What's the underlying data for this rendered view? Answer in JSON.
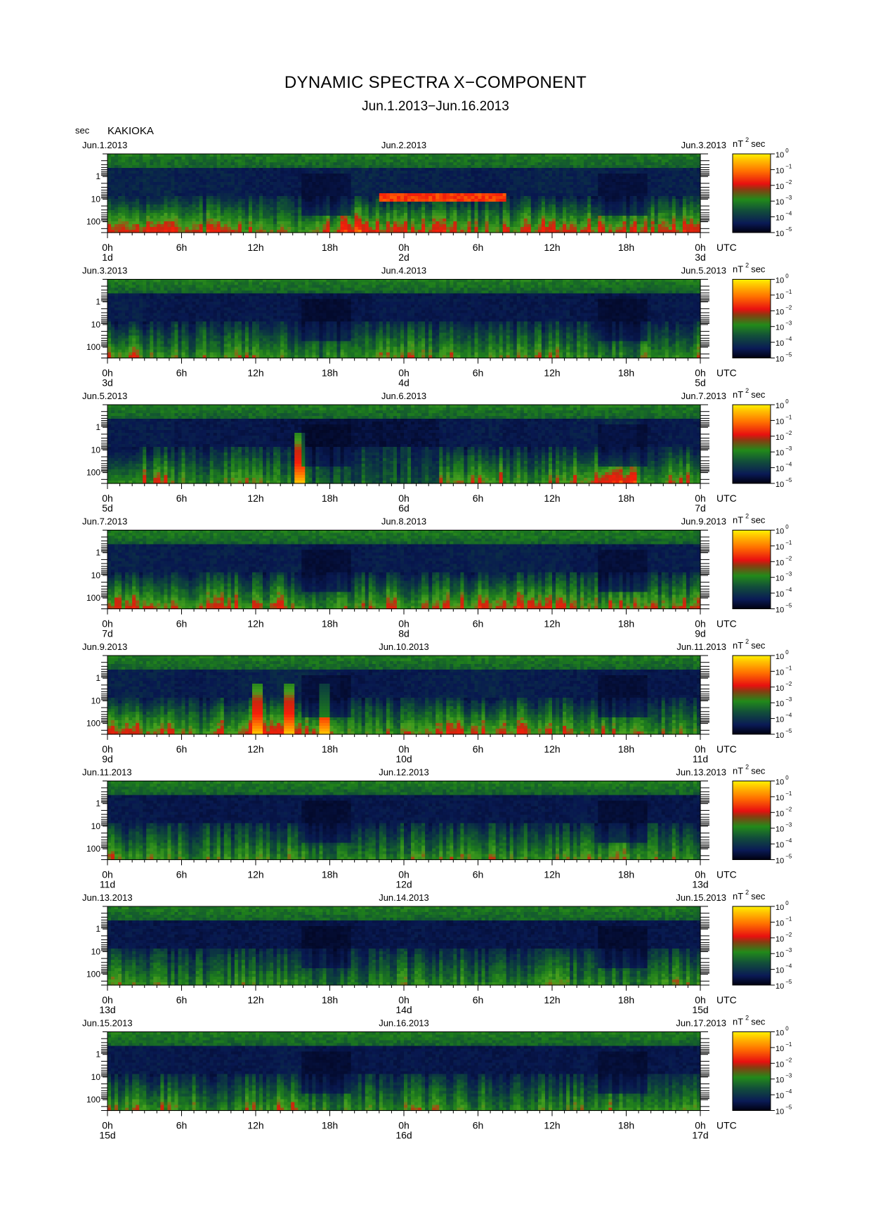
{
  "title": "DYNAMIC SPECTRA X−COMPONENT",
  "subtitle": "Jun.1.2013−Jun.16.2013",
  "station": "KAKIOKA",
  "y_unit": "sec",
  "colorbar_unit_base": "nT",
  "colorbar_unit_sup": "2",
  "colorbar_unit_tail": "sec",
  "colors": {
    "scale": [
      "#000000",
      "#0a1040",
      "#1a3a7a",
      "#1a6b1a",
      "#3fae1f",
      "#e01010",
      "#ff6a00",
      "#ffd000",
      "#ffff00"
    ],
    "background": "#ffffff"
  },
  "chart_data": [
    {
      "type": "heatmap",
      "panel": 1,
      "date_left": "Jun.1.2013",
      "date_mid": "Jun.2.2013",
      "date_right": "Jun.3.2013",
      "day_labels": [
        "1d",
        "2d",
        "3d"
      ],
      "activity": [
        0.62,
        0.7,
        0.55,
        0.6,
        0.5,
        0.45,
        0.55,
        0.7,
        0.62,
        0.58,
        0.6,
        0.5,
        0.55,
        0.65,
        0.62,
        0.58,
        0.55,
        0.6
      ],
      "band_event": {
        "start_h": 22,
        "end_h": 32,
        "period_sec": 8,
        "level": 0.75
      }
    },
    {
      "type": "heatmap",
      "panel": 2,
      "date_left": "Jun.3.2013",
      "date_mid": "Jun.4.2013",
      "date_right": "Jun.5.2013",
      "day_labels": [
        "3d",
        "4d",
        "5d"
      ],
      "activity": [
        0.55,
        0.45,
        0.38,
        0.42,
        0.45,
        0.4,
        0.3,
        0.35,
        0.45,
        0.42,
        0.45,
        0.4,
        0.42,
        0.44,
        0.36,
        0.32,
        0.4,
        0.45
      ]
    },
    {
      "type": "heatmap",
      "panel": 3,
      "date_left": "Jun.5.2013",
      "date_mid": "Jun.6.2013",
      "date_right": "Jun.7.2013",
      "day_labels": [
        "5d",
        "6d",
        "7d"
      ],
      "activity": [
        0.5,
        0.52,
        0.4,
        0.38,
        0.42,
        0.3,
        0.2,
        0.2,
        0.15,
        0.2,
        0.45,
        0.5,
        0.4,
        0.45,
        0.55,
        0.75,
        0.4,
        0.5
      ],
      "spike_h": [
        15.5
      ]
    },
    {
      "type": "heatmap",
      "panel": 4,
      "date_left": "Jun.7.2013",
      "date_mid": "Jun.8.2013",
      "date_right": "Jun.9.2013",
      "day_labels": [
        "7d",
        "8d",
        "9d"
      ],
      "activity": [
        0.6,
        0.55,
        0.5,
        0.55,
        0.5,
        0.55,
        0.4,
        0.45,
        0.55,
        0.5,
        0.55,
        0.62,
        0.6,
        0.58,
        0.45,
        0.5,
        0.5,
        0.52
      ]
    },
    {
      "type": "heatmap",
      "panel": 5,
      "date_left": "Jun.9.2013",
      "date_mid": "Jun.10.2013",
      "date_right": "Jun.11.2013",
      "day_labels": [
        "9d",
        "10d",
        "11d"
      ],
      "activity": [
        0.6,
        0.58,
        0.45,
        0.55,
        0.62,
        0.65,
        0.6,
        0.4,
        0.45,
        0.5,
        0.58,
        0.62,
        0.55,
        0.5,
        0.5,
        0.45,
        0.42,
        0.4
      ],
      "spike_h": [
        12,
        14.5,
        17.5
      ]
    },
    {
      "type": "heatmap",
      "panel": 6,
      "date_left": "Jun.11.2013",
      "date_mid": "Jun.12.2013",
      "date_right": "Jun.13.2013",
      "day_labels": [
        "11d",
        "12d",
        "13d"
      ],
      "activity": [
        0.45,
        0.4,
        0.35,
        0.35,
        0.38,
        0.4,
        0.35,
        0.4,
        0.38,
        0.4,
        0.42,
        0.4,
        0.38,
        0.4,
        0.45,
        0.42,
        0.35,
        0.38
      ]
    },
    {
      "type": "heatmap",
      "panel": 7,
      "date_left": "Jun.13.2013",
      "date_mid": "Jun.14.2013",
      "date_right": "Jun.15.2013",
      "day_labels": [
        "13d",
        "14d",
        "15d"
      ],
      "activity": [
        0.4,
        0.35,
        0.32,
        0.35,
        0.36,
        0.34,
        0.25,
        0.3,
        0.36,
        0.38,
        0.35,
        0.36,
        0.35,
        0.38,
        0.3,
        0.3,
        0.36,
        0.4
      ]
    },
    {
      "type": "heatmap",
      "panel": 8,
      "date_left": "Jun.15.2013",
      "date_mid": "Jun.16.2013",
      "date_right": "Jun.17.2013",
      "day_labels": [
        "15d",
        "16d",
        "17d"
      ],
      "activity": [
        0.45,
        0.48,
        0.4,
        0.38,
        0.42,
        0.5,
        0.35,
        0.36,
        0.38,
        0.4,
        0.38,
        0.36,
        0.35,
        0.38,
        0.4,
        0.45,
        0.35,
        0.38
      ]
    }
  ],
  "chart_meta": {
    "x_ticks": [
      "0h",
      "6h",
      "12h",
      "18h",
      "0h",
      "6h",
      "12h",
      "18h",
      "0h"
    ],
    "x_unit": "UTC",
    "y_ticks": [
      "1",
      "10",
      "100"
    ],
    "y_scale": "log",
    "y_range_sec": [
      0.1,
      300
    ],
    "x_range_hours": [
      0,
      48
    ],
    "colorbar_exponents": [
      "0",
      "−1",
      "−2",
      "−3",
      "−4",
      "−5"
    ],
    "colorbar_base": "10",
    "colorbar_range": [
      1e-05,
      1
    ]
  }
}
